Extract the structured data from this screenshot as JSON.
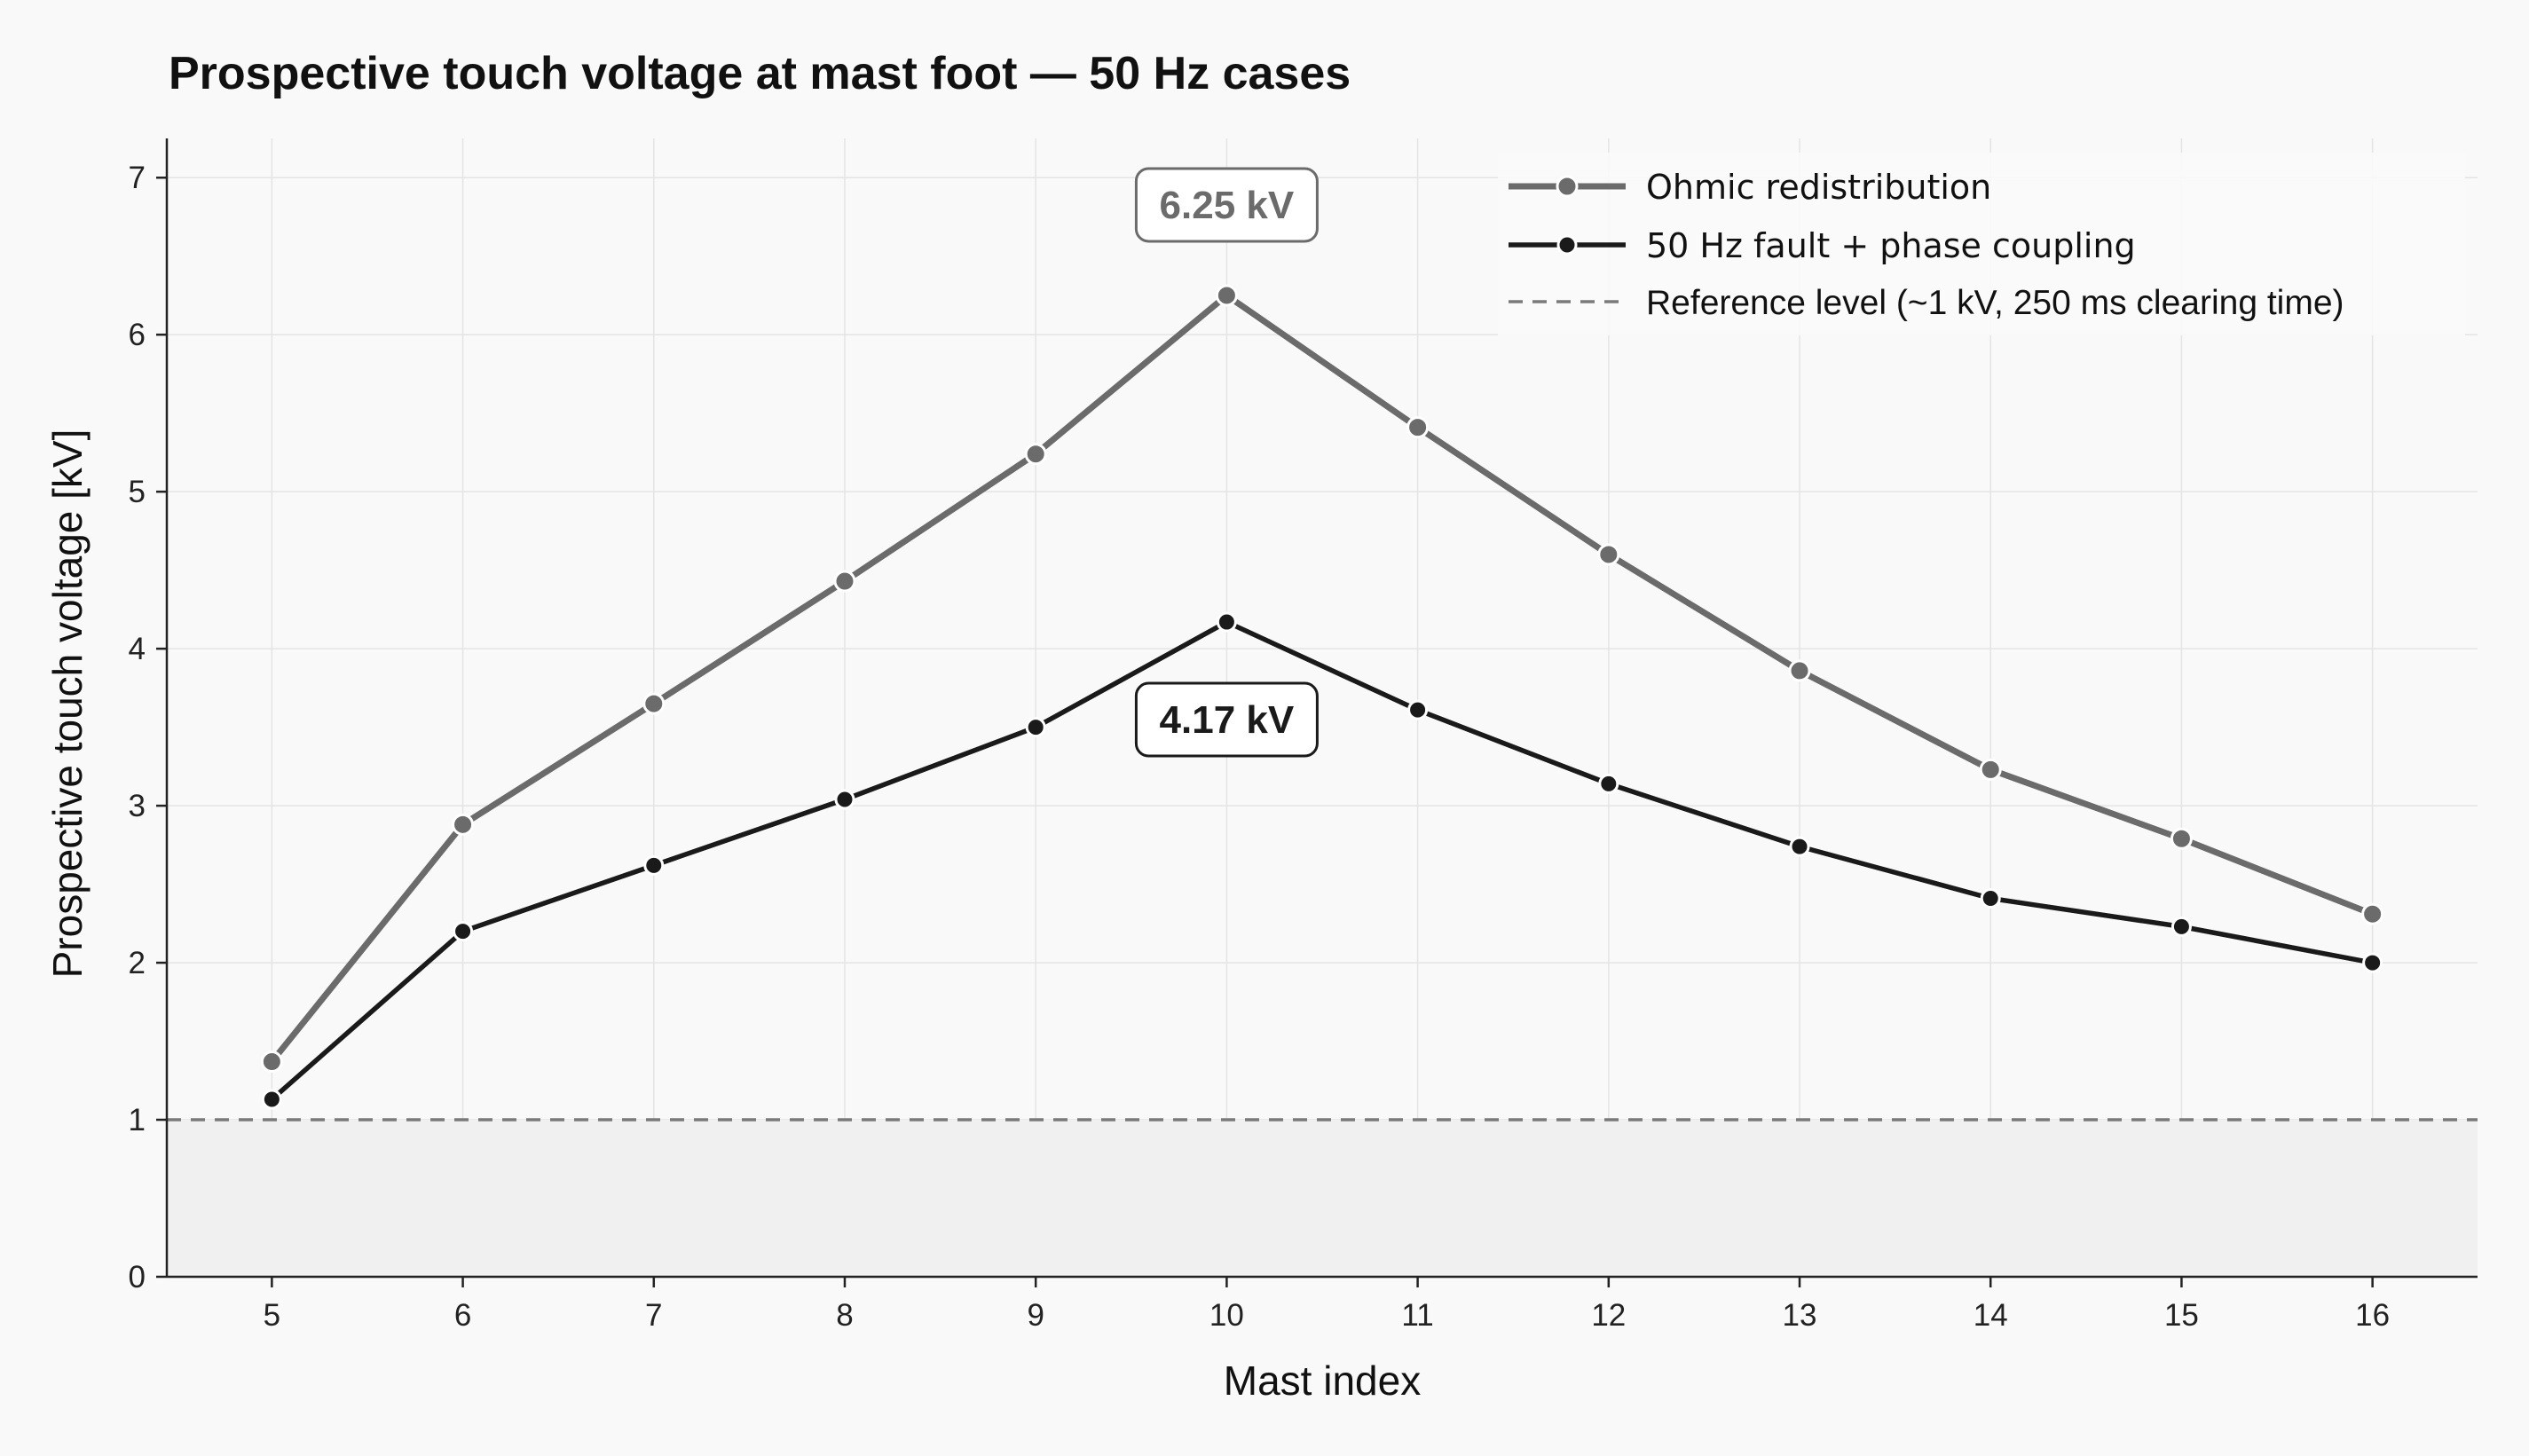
{
  "chart_data": {
    "type": "line",
    "title": "Prospective touch voltage at mast foot — 50 Hz cases",
    "xlabel": "Mast index",
    "ylabel": "Prospective touch voltage [kV]",
    "x": [
      5,
      6,
      7,
      8,
      9,
      10,
      11,
      12,
      13,
      14,
      15,
      16
    ],
    "xlim": [
      4.45,
      16.55
    ],
    "ylim": [
      0,
      7.25
    ],
    "yticks": [
      0,
      1,
      2,
      3,
      4,
      5,
      6,
      7
    ],
    "grid": true,
    "legend_position": "top-right",
    "series": [
      {
        "name": "Ohmic redistribution",
        "color": "#6b6b6b",
        "values": [
          1.37,
          2.88,
          3.65,
          4.43,
          5.24,
          6.25,
          5.41,
          4.6,
          3.86,
          3.23,
          2.79,
          2.31
        ]
      },
      {
        "name": "50 Hz fault + phase coupling",
        "color": "#1a1a1a",
        "values": [
          1.13,
          2.2,
          2.62,
          3.04,
          3.5,
          4.17,
          3.61,
          3.14,
          2.74,
          2.41,
          2.23,
          2.0
        ]
      }
    ],
    "reference": {
      "name": "Reference level (~1 kV, 250 ms clearing time)",
      "value": 1,
      "color": "#7a7a7a"
    },
    "annotations": [
      {
        "text": "6.25 kV",
        "x": 10,
        "series": 0
      },
      {
        "text": "4.17 kV",
        "x": 10,
        "series": 1
      }
    ]
  }
}
